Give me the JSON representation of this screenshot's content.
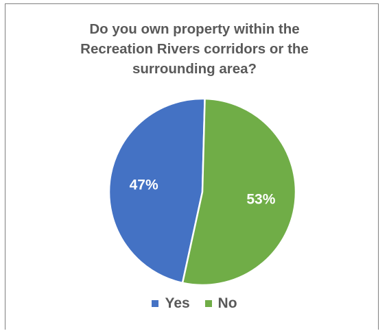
{
  "chart_data": {
    "type": "pie",
    "title_lines": [
      "Do you own property within the",
      "Recreation Rivers corridors or the",
      "surrounding area?"
    ],
    "categories": [
      "Yes",
      "No"
    ],
    "values": [
      47,
      53
    ],
    "data_labels": [
      "47%",
      "53%"
    ],
    "colors": [
      "#4472c4",
      "#70ad47"
    ],
    "legend_position": "bottom"
  }
}
